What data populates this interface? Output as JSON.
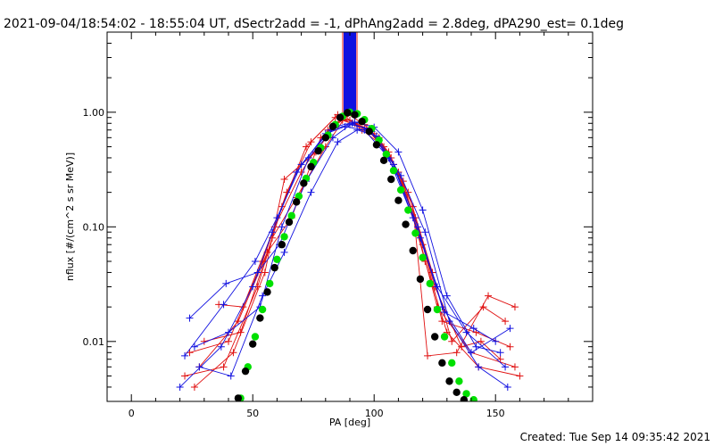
{
  "header": {
    "title": "2021-09-04/18:54:02 - 18:55:04 UT, dSectr2add = -1, dPhAng2add = 2.8deg, dPA290_est=  0.1deg"
  },
  "footer": {
    "created": "Created: Tue Sep 14 09:35:42 2021"
  },
  "chart_data": {
    "type": "line",
    "title": "2021-09-04/18:54:02 - 18:55:04 UT, dSectr2add = -1, dPhAng2add = 2.8deg, dPA290_est=  0.1deg",
    "xlabel": "PA [deg]",
    "ylabel": "nflux [#/(cm^2 s sr MeV)]",
    "xlim": [
      -10,
      190
    ],
    "ylim": [
      0.003,
      5.0
    ],
    "yscale": "log",
    "x_ticks": [
      0,
      50,
      100,
      150
    ],
    "x_tick_labels": [
      "0",
      "50",
      "100",
      "150"
    ],
    "y_ticks": [
      0.01,
      0.1,
      1.0
    ],
    "y_tick_labels": [
      "0.01",
      "0.10",
      "1.00"
    ],
    "grid": false,
    "vertical_line_x": 90,
    "colors": {
      "red_series": "#e01010",
      "blue_series": "#1010e0",
      "model_green": "#00e000",
      "model_black": "#000000"
    },
    "series": [
      {
        "color": "red",
        "marker": "plus",
        "lines": [
          {
            "x": [
              22,
              38,
              52,
              62,
              72,
              84,
              90,
              98,
              108,
              118,
              126,
              140,
              158
            ],
            "y": [
              0.005,
              0.006,
              0.03,
              0.15,
              0.5,
              0.9,
              0.85,
              0.7,
              0.35,
              0.09,
              0.02,
              0.008,
              0.006
            ]
          },
          {
            "x": [
              24,
              40,
              54,
              64,
              74,
              85,
              92,
              100,
              110,
              120,
              128,
              142,
              156
            ],
            "y": [
              0.008,
              0.01,
              0.05,
              0.2,
              0.55,
              0.95,
              0.8,
              0.65,
              0.3,
              0.07,
              0.015,
              0.012,
              0.009
            ]
          },
          {
            "x": [
              26,
              42,
              55,
              63,
              76,
              86,
              94,
              102,
              112,
              121,
              130,
              143,
              160
            ],
            "y": [
              0.004,
              0.008,
              0.04,
              0.26,
              0.45,
              0.88,
              0.75,
              0.6,
              0.25,
              0.05,
              0.012,
              0.006,
              0.005
            ]
          },
          {
            "x": [
              28,
              44,
              56,
              66,
              78,
              88,
              95,
              104,
              114,
              124,
              132,
              145,
              154
            ],
            "y": [
              0.006,
              0.015,
              0.06,
              0.12,
              0.6,
              0.92,
              0.7,
              0.5,
              0.2,
              0.04,
              0.01,
              0.02,
              0.015
            ]
          },
          {
            "x": [
              30,
              45,
              58,
              68,
              80,
              89,
              96,
              106,
              116,
              122,
              134,
              147,
              158
            ],
            "y": [
              0.01,
              0.012,
              0.08,
              0.18,
              0.5,
              0.97,
              0.78,
              0.45,
              0.15,
              0.0075,
              0.008,
              0.025,
              0.02
            ]
          },
          {
            "x": [
              36,
              46,
              59,
              70,
              81,
              87,
              97,
              107,
              117,
              125,
              136,
              144,
              152
            ],
            "y": [
              0.021,
              0.02,
              0.1,
              0.3,
              0.7,
              0.85,
              0.72,
              0.4,
              0.12,
              0.03,
              0.009,
              0.01,
              0.007
            ]
          }
        ]
      },
      {
        "color": "blue",
        "marker": "plus",
        "lines": [
          {
            "x": [
              20,
              37,
              50,
              58,
              68,
              80,
              88,
              96,
              106,
              116,
              126,
              138,
              154
            ],
            "y": [
              0.004,
              0.009,
              0.03,
              0.09,
              0.3,
              0.65,
              0.75,
              0.7,
              0.4,
              0.12,
              0.03,
              0.012,
              0.006
            ]
          },
          {
            "x": [
              22,
              38,
              51,
              60,
              70,
              82,
              90,
              98,
              108,
              118,
              128,
              140,
              156
            ],
            "y": [
              0.0075,
              0.021,
              0.05,
              0.12,
              0.35,
              0.7,
              0.78,
              0.72,
              0.35,
              0.1,
              0.02,
              0.008,
              0.013
            ]
          },
          {
            "x": [
              24,
              39,
              52,
              61,
              72,
              83,
              91,
              99,
              109,
              119,
              129,
              141,
              150
            ],
            "y": [
              0.016,
              0.032,
              0.04,
              0.07,
              0.25,
              0.6,
              0.8,
              0.68,
              0.3,
              0.08,
              0.018,
              0.013,
              0.01
            ]
          },
          {
            "x": [
              26,
              40,
              53,
              62,
              73,
              84,
              92,
              100,
              110,
              120,
              130,
              142,
              152
            ],
            "y": [
              0.009,
              0.012,
              0.02,
              0.1,
              0.4,
              0.75,
              0.82,
              0.74,
              0.45,
              0.14,
              0.025,
              0.009,
              0.008
            ]
          },
          {
            "x": [
              28,
              41,
              54,
              63,
              74,
              85,
              93,
              101,
              111,
              121,
              131,
              143,
              155
            ],
            "y": [
              0.006,
              0.005,
              0.025,
              0.06,
              0.2,
              0.55,
              0.7,
              0.62,
              0.28,
              0.09,
              0.015,
              0.006,
              0.004
            ]
          }
        ]
      },
      {
        "color": "green",
        "marker": "circle",
        "name": "",
        "x": [
          45,
          48,
          51,
          54,
          57,
          60,
          63,
          66,
          69,
          72,
          75,
          78,
          81,
          84,
          87,
          90,
          93,
          96,
          99,
          102,
          105,
          108,
          111,
          114,
          117,
          120,
          123,
          126,
          129,
          132,
          135,
          138,
          141
        ],
        "y": [
          0.0032,
          0.006,
          0.011,
          0.019,
          0.032,
          0.052,
          0.082,
          0.125,
          0.185,
          0.265,
          0.365,
          0.49,
          0.63,
          0.78,
          0.92,
          1.0,
          0.97,
          0.86,
          0.72,
          0.57,
          0.43,
          0.31,
          0.21,
          0.14,
          0.088,
          0.054,
          0.032,
          0.019,
          0.011,
          0.0065,
          0.0045,
          0.0035,
          0.0031
        ]
      },
      {
        "color": "black",
        "marker": "circle",
        "name": "",
        "x": [
          44,
          47,
          50,
          53,
          56,
          59,
          62,
          65,
          68,
          71,
          74,
          77,
          80,
          83,
          86,
          89,
          92,
          95,
          98,
          101,
          104,
          107,
          110,
          113,
          116,
          119,
          122,
          125,
          128,
          131,
          134,
          137
        ],
        "y": [
          0.0032,
          0.0055,
          0.0095,
          0.016,
          0.027,
          0.044,
          0.07,
          0.11,
          0.165,
          0.24,
          0.335,
          0.46,
          0.6,
          0.75,
          0.9,
          0.99,
          0.95,
          0.83,
          0.68,
          0.52,
          0.38,
          0.26,
          0.17,
          0.105,
          0.062,
          0.035,
          0.019,
          0.011,
          0.0065,
          0.0045,
          0.0036,
          0.0031
        ]
      }
    ]
  }
}
